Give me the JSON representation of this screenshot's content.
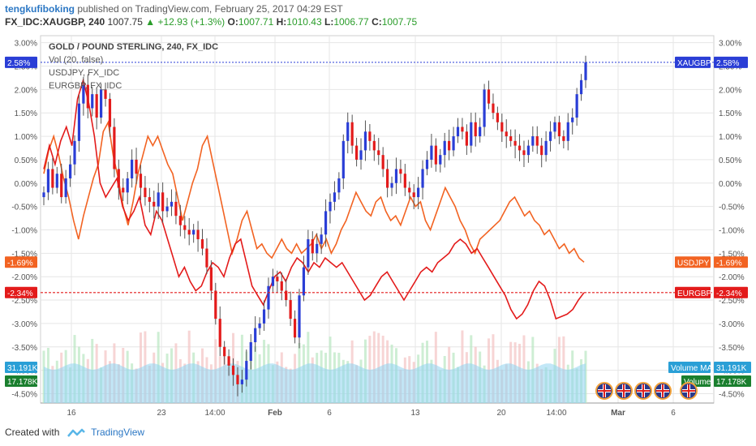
{
  "header": {
    "user": "tengkufiboking",
    "published": "published on TradingView.com, February 25, 2017 04:29 EST",
    "symbol": "FX_IDC:XAUGBP, 240",
    "last": "1007.75",
    "change": "▲ +12.93 (+1.3%)",
    "o_label": "O:",
    "o_val": "1007.71",
    "h_label": "H:",
    "h_val": "1010.43",
    "l_label": "L:",
    "l_val": "1006.77",
    "c_label": "C:",
    "c_val": "1007.75"
  },
  "legend": {
    "title": "GOLD / POUND STERLING, 240, FX_IDC",
    "vol": "Vol (20, false)",
    "s1": "USDJPY, FX_IDC",
    "s2": "EURGBP, FX_IDC"
  },
  "footer": {
    "created": "Created with",
    "brand": "TradingView"
  },
  "colors": {
    "up": "#2a3ed6",
    "down": "#e31b1b",
    "usdjpy": "#f26322",
    "eurgbp": "#e31b1b",
    "volume_ma": "#8fd3f0",
    "volume": "#1a7f2e",
    "grid": "#e6e6e6"
  },
  "chart_data": {
    "type": "line",
    "title": "GOLD / POUND STERLING, 240, FX_IDC",
    "y_axis": {
      "unit": "%",
      "ticks": [
        "3.00%",
        "2.50%",
        "2.00%",
        "1.50%",
        "1.00%",
        "0.50%",
        "0.00%",
        "-0.50%",
        "-1.00%",
        "-1.50%",
        "-2.00%",
        "-2.50%",
        "-3.00%",
        "-3.50%",
        "-4.00%",
        "-4.50%"
      ],
      "range": [
        -4.7,
        3.15
      ]
    },
    "x_axis": {
      "ticks": [
        "16",
        "23",
        "14:00",
        "Feb",
        "6",
        "13",
        "20",
        "14:00",
        "Mar",
        "6"
      ]
    },
    "series": [
      {
        "name": "XAUGBP",
        "kind": "candles",
        "last_label": "2.58%",
        "last_value": 2.58,
        "close": [
          -0.2,
          0.3,
          -0.1,
          0.2,
          -0.3,
          0.1,
          0.4,
          0.9,
          1.7,
          2.1,
          1.6,
          1.9,
          1.4,
          2.0,
          1.8,
          1.2,
          0.3,
          -0.1,
          -0.2,
          0.1,
          0.5,
          0.2,
          -0.1,
          -0.3,
          -0.4,
          -0.5,
          -0.2,
          -0.6,
          -0.5,
          -0.4,
          -0.7,
          -0.9,
          -1.0,
          -1.1,
          -1.0,
          -1.2,
          -1.4,
          -1.8,
          -2.3,
          -2.9,
          -3.5,
          -3.7,
          -3.9,
          -4.1,
          -4.3,
          -4.2,
          -3.8,
          -3.4,
          -3.1,
          -3.0,
          -2.7,
          -2.2,
          -2.0,
          -2.1,
          -2.3,
          -2.5,
          -2.9,
          -3.3,
          -2.4,
          -1.8,
          -1.2,
          -1.5,
          -1.3,
          -1.1,
          -0.6,
          -0.4,
          -0.2,
          0.1,
          0.9,
          1.3,
          0.8,
          0.5,
          0.7,
          1.1,
          0.9,
          0.7,
          0.6,
          0.3,
          -0.1,
          0.0,
          0.3,
          0.2,
          -0.1,
          -0.2,
          -0.3,
          -0.1,
          0.3,
          0.5,
          0.8,
          0.4,
          0.6,
          0.9,
          0.7,
          1.0,
          1.2,
          1.1,
          0.8,
          1.3,
          1.0,
          1.2,
          2.0,
          1.7,
          1.5,
          1.3,
          1.1,
          1.0,
          0.9,
          0.8,
          0.7,
          0.6,
          0.8,
          1.0,
          0.8,
          0.6,
          0.9,
          1.1,
          1.3,
          1.0,
          0.9,
          1.3,
          1.4,
          1.9,
          2.2,
          2.58
        ]
      },
      {
        "name": "USDJPY",
        "kind": "line",
        "last_label": "-1.69%",
        "last_value": -1.69,
        "values": [
          0.2,
          0.7,
          1.0,
          0.6,
          0.1,
          -0.3,
          -0.8,
          -1.2,
          -0.7,
          -0.3,
          0.1,
          0.4,
          1.1,
          1.3,
          0.6,
          0.1,
          -0.5,
          -0.9,
          -0.4,
          0.2,
          0.6,
          1.0,
          0.8,
          1.0,
          0.7,
          0.4,
          0.2,
          -0.3,
          -0.8,
          -0.4,
          0.0,
          0.3,
          0.8,
          1.0,
          0.5,
          0.0,
          -0.5,
          -1.0,
          -1.5,
          -1.2,
          -0.8,
          -0.6,
          -1.0,
          -1.4,
          -1.3,
          -1.5,
          -1.6,
          -1.4,
          -1.2,
          -1.4,
          -1.5,
          -1.3,
          -1.5,
          -1.4,
          -1.3,
          -1.1,
          -1.4,
          -1.2,
          -1.5,
          -1.3,
          -1.0,
          -0.8,
          -0.5,
          -0.2,
          -0.4,
          -0.6,
          -0.7,
          -0.4,
          -0.3,
          -0.6,
          -0.8,
          -0.7,
          -0.9,
          -0.6,
          -0.3,
          -0.5,
          -0.4,
          -0.8,
          -1.0,
          -0.7,
          -0.4,
          -0.1,
          -0.3,
          -0.5,
          -0.8,
          -1.0,
          -1.3,
          -1.5,
          -1.2,
          -1.1,
          -1.0,
          -0.9,
          -0.8,
          -0.6,
          -0.4,
          -0.3,
          -0.5,
          -0.7,
          -0.6,
          -0.8,
          -0.9,
          -1.1,
          -1.0,
          -1.2,
          -1.4,
          -1.3,
          -1.5,
          -1.4,
          -1.6,
          -1.69
        ]
      },
      {
        "name": "EURGBP",
        "kind": "line",
        "last_label": "-2.34%",
        "last_value": -2.34,
        "values": [
          0.3,
          0.8,
          0.4,
          0.9,
          1.2,
          0.8,
          1.8,
          2.2,
          1.7,
          1.0,
          0.0,
          -0.3,
          -0.1,
          0.1,
          -0.5,
          -0.8,
          -0.6,
          -0.3,
          -0.9,
          -1.1,
          -0.6,
          -0.8,
          -1.2,
          -1.6,
          -2.0,
          -1.8,
          -2.1,
          -2.3,
          -2.2,
          -1.9,
          -1.7,
          -1.8,
          -2.0,
          -1.6,
          -1.3,
          -1.2,
          -1.7,
          -2.2,
          -2.4,
          -2.6,
          -2.3,
          -2.0,
          -1.9,
          -2.1,
          -1.8,
          -1.6,
          -1.7,
          -1.9,
          -1.7,
          -1.8,
          -1.6,
          -1.7,
          -1.8,
          -1.7,
          -1.9,
          -2.1,
          -2.3,
          -2.5,
          -2.4,
          -2.2,
          -2.0,
          -1.9,
          -2.1,
          -2.3,
          -2.5,
          -2.3,
          -2.1,
          -1.9,
          -1.8,
          -1.9,
          -1.7,
          -1.6,
          -1.5,
          -1.3,
          -1.2,
          -1.3,
          -1.5,
          -1.4,
          -1.6,
          -1.8,
          -2.0,
          -2.2,
          -2.4,
          -2.7,
          -2.9,
          -2.8,
          -2.6,
          -2.3,
          -2.1,
          -2.2,
          -2.5,
          -2.9,
          -2.85,
          -2.8,
          -2.7,
          -2.5,
          -2.34
        ]
      },
      {
        "name": "Volume",
        "kind": "volume",
        "label": "17.178K",
        "ma_label": "31.191K",
        "ma_name": "Volume MA"
      }
    ]
  }
}
